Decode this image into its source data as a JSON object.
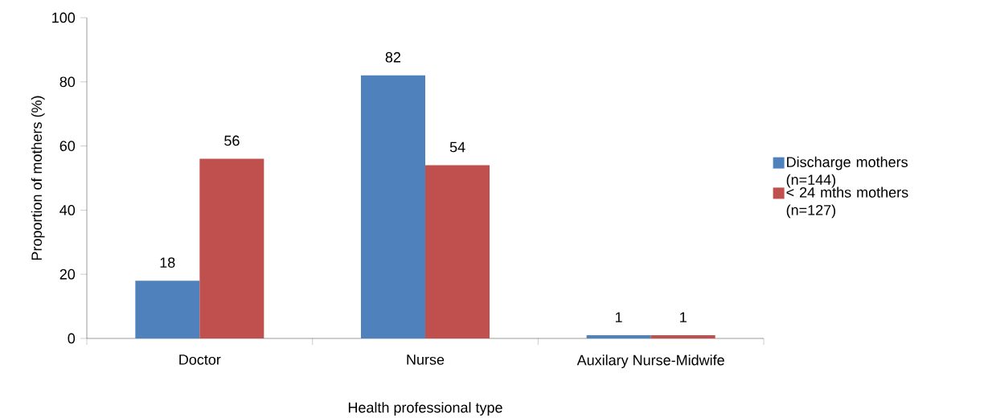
{
  "chart_data": {
    "type": "bar",
    "xlabel": "Health professional type",
    "ylabel": "Proportion of mothers (%)",
    "categories": [
      "Doctor",
      "Nurse",
      "Auxilary Nurse-Midwife"
    ],
    "series": [
      {
        "name": "Discharge mothers (n=144)",
        "color": "#4f81bd",
        "values": [
          18,
          82,
          1
        ]
      },
      {
        "name": "< 24 mths mothers (n=127)",
        "color": "#c0504d",
        "values": [
          56,
          54,
          1
        ]
      }
    ],
    "ylim": [
      0,
      100
    ],
    "yticks": [
      0,
      20,
      40,
      60,
      80,
      100
    ],
    "grid": false,
    "legend": "right",
    "data_labels": true
  }
}
